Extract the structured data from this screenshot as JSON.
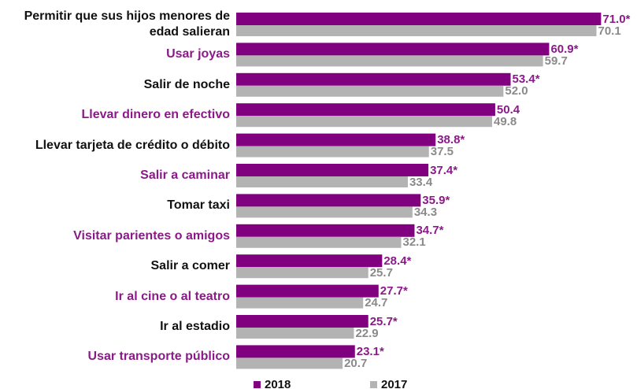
{
  "chart_data": {
    "type": "hbar",
    "categories": [
      "Permitir que sus hijos menores de edad salieran",
      "Usar joyas",
      "Salir de noche",
      "Llevar dinero en efectivo",
      "Llevar tarjeta de crédito o débito",
      "Salir a caminar",
      "Tomar taxi",
      "Visitar parientes o amigos",
      "Salir a comer",
      "Ir al cine o al teatro",
      "Ir al estadio",
      "Usar transporte público"
    ],
    "category_colors": [
      "#111111",
      "#8b1a89",
      "#111111",
      "#8b1a89",
      "#111111",
      "#8b1a89",
      "#111111",
      "#8b1a89",
      "#111111",
      "#8b1a89",
      "#111111",
      "#8b1a89"
    ],
    "series": [
      {
        "name": "2018",
        "color": "#800080",
        "label_color": "#8b1a89",
        "values": [
          71.0,
          60.9,
          53.4,
          50.4,
          38.8,
          37.4,
          35.9,
          34.7,
          28.4,
          27.7,
          25.7,
          23.1
        ],
        "value_labels": [
          "71.0*",
          "60.9*",
          "53.4*",
          "50.4",
          "38.8*",
          "37.4*",
          "35.9*",
          "34.7*",
          "28.4*",
          "27.7*",
          "25.7*",
          "23.1*"
        ]
      },
      {
        "name": "2017",
        "color": "#b3b3b3",
        "label_color": "#8a8a8a",
        "values": [
          70.1,
          59.7,
          52.0,
          49.8,
          37.5,
          33.4,
          34.3,
          32.1,
          25.7,
          24.7,
          22.9,
          20.7
        ],
        "value_labels": [
          "70.1",
          "59.7",
          "52.0",
          "49.8",
          "37.5",
          "33.4",
          "34.3",
          "32.1",
          "25.7",
          "24.7",
          "22.9",
          "20.7"
        ]
      }
    ],
    "xlim": [
      0,
      76
    ]
  }
}
